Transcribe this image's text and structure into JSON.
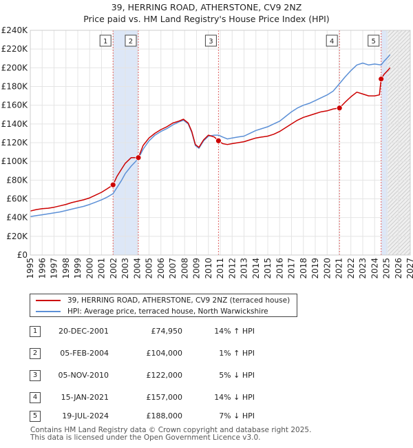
{
  "title": {
    "line1": "39, HERRING ROAD, ATHERSTONE, CV9 2NZ",
    "line2": "Price paid vs. HM Land Registry's House Price Index (HPI)"
  },
  "chart_data": {
    "type": "line",
    "title": "39, HERRING ROAD, ATHERSTONE, CV9 2NZ — Price paid vs. HM Land Registry's House Price Index (HPI)",
    "xlabel": "",
    "ylabel": "",
    "xlim": [
      1995,
      2027
    ],
    "ylim": [
      0,
      240000
    ],
    "x_ticks": [
      1995,
      1996,
      1997,
      1998,
      1999,
      2000,
      2001,
      2002,
      2003,
      2004,
      2005,
      2006,
      2007,
      2008,
      2009,
      2010,
      2011,
      2012,
      2013,
      2014,
      2015,
      2016,
      2017,
      2018,
      2019,
      2020,
      2021,
      2022,
      2023,
      2024,
      2025,
      2026,
      2027
    ],
    "y_ticks": [
      0,
      20000,
      40000,
      60000,
      80000,
      100000,
      120000,
      140000,
      160000,
      180000,
      200000,
      220000,
      240000
    ],
    "y_tick_labels": [
      "£0",
      "£20K",
      "£40K",
      "£60K",
      "£80K",
      "£100K",
      "£120K",
      "£140K",
      "£160K",
      "£180K",
      "£200K",
      "£220K",
      "£240K"
    ],
    "colors": {
      "property": "#cc0000",
      "hpi": "#5b8fd6",
      "shade": "#dde7f7",
      "marker_line": "#e06060",
      "future_hatch": "#b0b0b0"
    },
    "shaded_periods": [
      [
        2001.97,
        2004.1
      ],
      [
        2024.55,
        2025.1
      ]
    ],
    "future_from": 2025.1,
    "series": [
      {
        "name": "39, HERRING ROAD, ATHERSTONE, CV9 2NZ (terraced house)",
        "color": "#cc0000",
        "points": [
          [
            1995.0,
            47000
          ],
          [
            1995.5,
            48500
          ],
          [
            1996.0,
            49500
          ],
          [
            1996.5,
            50000
          ],
          [
            1997.0,
            51000
          ],
          [
            1997.5,
            52500
          ],
          [
            1998.0,
            54000
          ],
          [
            1998.5,
            56000
          ],
          [
            1999.0,
            57500
          ],
          [
            1999.5,
            59000
          ],
          [
            2000.0,
            61000
          ],
          [
            2000.5,
            64000
          ],
          [
            2001.0,
            67000
          ],
          [
            2001.5,
            71000
          ],
          [
            2001.97,
            74950
          ],
          [
            2002.3,
            84000
          ],
          [
            2002.7,
            92000
          ],
          [
            2003.0,
            98000
          ],
          [
            2003.5,
            104000
          ],
          [
            2004.1,
            104000
          ],
          [
            2004.5,
            117000
          ],
          [
            2005.0,
            125000
          ],
          [
            2005.5,
            130000
          ],
          [
            2006.0,
            134000
          ],
          [
            2006.5,
            137000
          ],
          [
            2007.0,
            141000
          ],
          [
            2007.5,
            143000
          ],
          [
            2007.9,
            145000
          ],
          [
            2008.3,
            141000
          ],
          [
            2008.6,
            132000
          ],
          [
            2008.9,
            118000
          ],
          [
            2009.2,
            115000
          ],
          [
            2009.6,
            123000
          ],
          [
            2010.0,
            128000
          ],
          [
            2010.5,
            126000
          ],
          [
            2010.85,
            122000
          ],
          [
            2011.2,
            119000
          ],
          [
            2011.6,
            118000
          ],
          [
            2012.0,
            119000
          ],
          [
            2012.5,
            120000
          ],
          [
            2013.0,
            121000
          ],
          [
            2013.5,
            123000
          ],
          [
            2014.0,
            125000
          ],
          [
            2014.5,
            126000
          ],
          [
            2015.0,
            127000
          ],
          [
            2015.5,
            129000
          ],
          [
            2016.0,
            132000
          ],
          [
            2016.5,
            136000
          ],
          [
            2017.0,
            140000
          ],
          [
            2017.5,
            144000
          ],
          [
            2018.0,
            147000
          ],
          [
            2018.5,
            149000
          ],
          [
            2019.0,
            151000
          ],
          [
            2019.5,
            153000
          ],
          [
            2020.0,
            154000
          ],
          [
            2020.5,
            156000
          ],
          [
            2021.04,
            157000
          ],
          [
            2021.5,
            163000
          ],
          [
            2022.0,
            169000
          ],
          [
            2022.5,
            174000
          ],
          [
            2023.0,
            172000
          ],
          [
            2023.5,
            170000
          ],
          [
            2024.0,
            170000
          ],
          [
            2024.4,
            171000
          ],
          [
            2024.55,
            188000
          ],
          [
            2024.8,
            193000
          ],
          [
            2025.1,
            197000
          ],
          [
            2025.3,
            200000
          ]
        ]
      },
      {
        "name": "HPI: Average price, terraced house, North Warwickshire",
        "color": "#5b8fd6",
        "points": [
          [
            1995.0,
            41000
          ],
          [
            1995.5,
            42000
          ],
          [
            1996.0,
            43000
          ],
          [
            1996.5,
            44000
          ],
          [
            1997.0,
            45000
          ],
          [
            1997.5,
            46000
          ],
          [
            1998.0,
            47500
          ],
          [
            1998.5,
            49000
          ],
          [
            1999.0,
            50500
          ],
          [
            1999.5,
            52000
          ],
          [
            2000.0,
            54000
          ],
          [
            2000.5,
            56500
          ],
          [
            2001.0,
            59000
          ],
          [
            2001.5,
            62000
          ],
          [
            2001.97,
            65500
          ],
          [
            2002.3,
            72000
          ],
          [
            2002.7,
            80000
          ],
          [
            2003.0,
            87000
          ],
          [
            2003.5,
            95000
          ],
          [
            2004.1,
            103000
          ],
          [
            2004.5,
            113000
          ],
          [
            2005.0,
            122000
          ],
          [
            2005.5,
            128000
          ],
          [
            2006.0,
            132000
          ],
          [
            2006.5,
            135000
          ],
          [
            2007.0,
            139000
          ],
          [
            2007.5,
            142000
          ],
          [
            2007.9,
            144000
          ],
          [
            2008.3,
            140000
          ],
          [
            2008.6,
            131000
          ],
          [
            2008.9,
            117000
          ],
          [
            2009.2,
            114000
          ],
          [
            2009.6,
            122000
          ],
          [
            2010.0,
            127000
          ],
          [
            2010.5,
            128000
          ],
          [
            2010.85,
            128000
          ],
          [
            2011.2,
            126000
          ],
          [
            2011.6,
            124000
          ],
          [
            2012.0,
            125000
          ],
          [
            2012.5,
            126000
          ],
          [
            2013.0,
            127000
          ],
          [
            2013.5,
            130000
          ],
          [
            2014.0,
            133000
          ],
          [
            2014.5,
            135000
          ],
          [
            2015.0,
            137000
          ],
          [
            2015.5,
            140000
          ],
          [
            2016.0,
            143000
          ],
          [
            2016.5,
            148000
          ],
          [
            2017.0,
            153000
          ],
          [
            2017.5,
            157000
          ],
          [
            2018.0,
            160000
          ],
          [
            2018.5,
            162000
          ],
          [
            2019.0,
            165000
          ],
          [
            2019.5,
            168000
          ],
          [
            2020.0,
            171000
          ],
          [
            2020.5,
            175000
          ],
          [
            2021.04,
            183000
          ],
          [
            2021.5,
            190000
          ],
          [
            2022.0,
            197000
          ],
          [
            2022.5,
            203000
          ],
          [
            2023.0,
            205000
          ],
          [
            2023.5,
            203000
          ],
          [
            2024.0,
            204000
          ],
          [
            2024.55,
            203000
          ],
          [
            2024.8,
            207000
          ],
          [
            2025.1,
            211000
          ],
          [
            2025.3,
            214000
          ]
        ]
      }
    ],
    "sales": [
      {
        "label": "1",
        "date": "20-DEC-2001",
        "price": "£74,950",
        "hpi": "14% ↑ HPI",
        "x": 2001.97,
        "y": 74950
      },
      {
        "label": "2",
        "date": "05-FEB-2004",
        "price": "£104,000",
        "hpi": "1% ↑ HPI",
        "x": 2004.1,
        "y": 104000
      },
      {
        "label": "3",
        "date": "05-NOV-2010",
        "price": "£122,000",
        "hpi": "5% ↓ HPI",
        "x": 2010.85,
        "y": 122000
      },
      {
        "label": "4",
        "date": "15-JAN-2021",
        "price": "£157,000",
        "hpi": "14% ↓ HPI",
        "x": 2021.04,
        "y": 157000
      },
      {
        "label": "5",
        "date": "19-JUL-2024",
        "price": "£188,000",
        "hpi": "7% ↓ HPI",
        "x": 2024.55,
        "y": 188000
      }
    ]
  },
  "legend": {
    "property_label": "39, HERRING ROAD, ATHERSTONE, CV9 2NZ (terraced house)",
    "hpi_label": "HPI: Average price, terraced house, North Warwickshire"
  },
  "footer": {
    "line1": "Contains HM Land Registry data © Crown copyright and database right 2025.",
    "line2": "This data is licensed under the Open Government Licence v3.0."
  }
}
